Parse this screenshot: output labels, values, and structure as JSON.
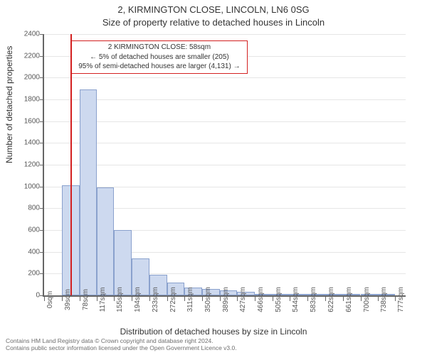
{
  "chart": {
    "type": "histogram",
    "title_line1": "2, KIRMINGTON CLOSE, LINCOLN, LN6 0SG",
    "title_line2": "Size of property relative to detached houses in Lincoln",
    "title_fontsize": 13,
    "xlabel": "Distribution of detached houses by size in Lincoln",
    "ylabel": "Number of detached properties",
    "label_fontsize": 12,
    "tick_fontsize": 10,
    "background_color": "#ffffff",
    "grid_color": "#e6e6e6",
    "axis_color": "#666666",
    "bar_fill": "#cdd9ef",
    "bar_border": "#8aa1cd",
    "marker_color": "#d32020",
    "xlim": [
      0,
      800
    ],
    "ylim": [
      0,
      2400
    ],
    "ytick_step": 200,
    "yticks": [
      0,
      200,
      400,
      600,
      800,
      1000,
      1200,
      1400,
      1600,
      1800,
      2000,
      2200,
      2400
    ],
    "xticks": [
      0,
      39,
      78,
      117,
      155,
      194,
      233,
      272,
      311,
      350,
      389,
      427,
      466,
      505,
      544,
      583,
      622,
      661,
      700,
      738,
      777
    ],
    "xtick_labels": [
      "0sqm",
      "39sqm",
      "78sqm",
      "117sqm",
      "155sqm",
      "194sqm",
      "233sqm",
      "272sqm",
      "311sqm",
      "350sqm",
      "389sqm",
      "427sqm",
      "466sqm",
      "505sqm",
      "544sqm",
      "583sqm",
      "622sqm",
      "661sqm",
      "700sqm",
      "738sqm",
      "777sqm"
    ],
    "bin_width": 39,
    "bin_edges_sqm": [
      0,
      39,
      78,
      117,
      155,
      194,
      233,
      272,
      311,
      350,
      389,
      427,
      466,
      505,
      544,
      583,
      622,
      661,
      700,
      738,
      777,
      816
    ],
    "bin_counts": [
      0,
      1010,
      1890,
      990,
      600,
      340,
      190,
      120,
      70,
      60,
      45,
      30,
      15,
      10,
      8,
      5,
      3,
      2,
      1,
      1,
      0
    ],
    "marker_value_sqm": 58,
    "annotation": {
      "line1": "2 KIRMINGTON CLOSE: 58sqm",
      "line2": "← 5% of detached houses are smaller (205)",
      "line3": "95% of semi-detached houses are larger (4,131) →",
      "border_color": "#d32020",
      "left_sqm": 60,
      "width_sqm": 390,
      "top_value": 2340,
      "height_value": 280
    }
  },
  "footer": {
    "line1": "Contains HM Land Registry data © Crown copyright and database right 2024.",
    "line2": "Contains public sector information licensed under the Open Government Licence v3.0."
  }
}
